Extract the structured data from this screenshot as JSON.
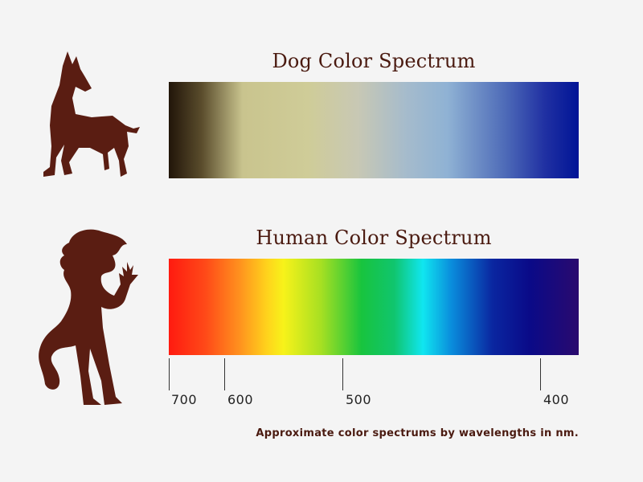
{
  "dog": {
    "title": "Dog Color Spectrum",
    "icon": "dog-silhouette-icon"
  },
  "human": {
    "title": "Human Color Spectrum",
    "icon": "human-silhouette-icon"
  },
  "axis": {
    "ticks": [
      "700",
      "600",
      "500",
      "400"
    ]
  },
  "caption": "Approximate color spectrums by wavelengths in nm.",
  "colors": {
    "silhouette": "#5a1d12",
    "title": "#4a1a10",
    "background": "#f4f4f4"
  }
}
